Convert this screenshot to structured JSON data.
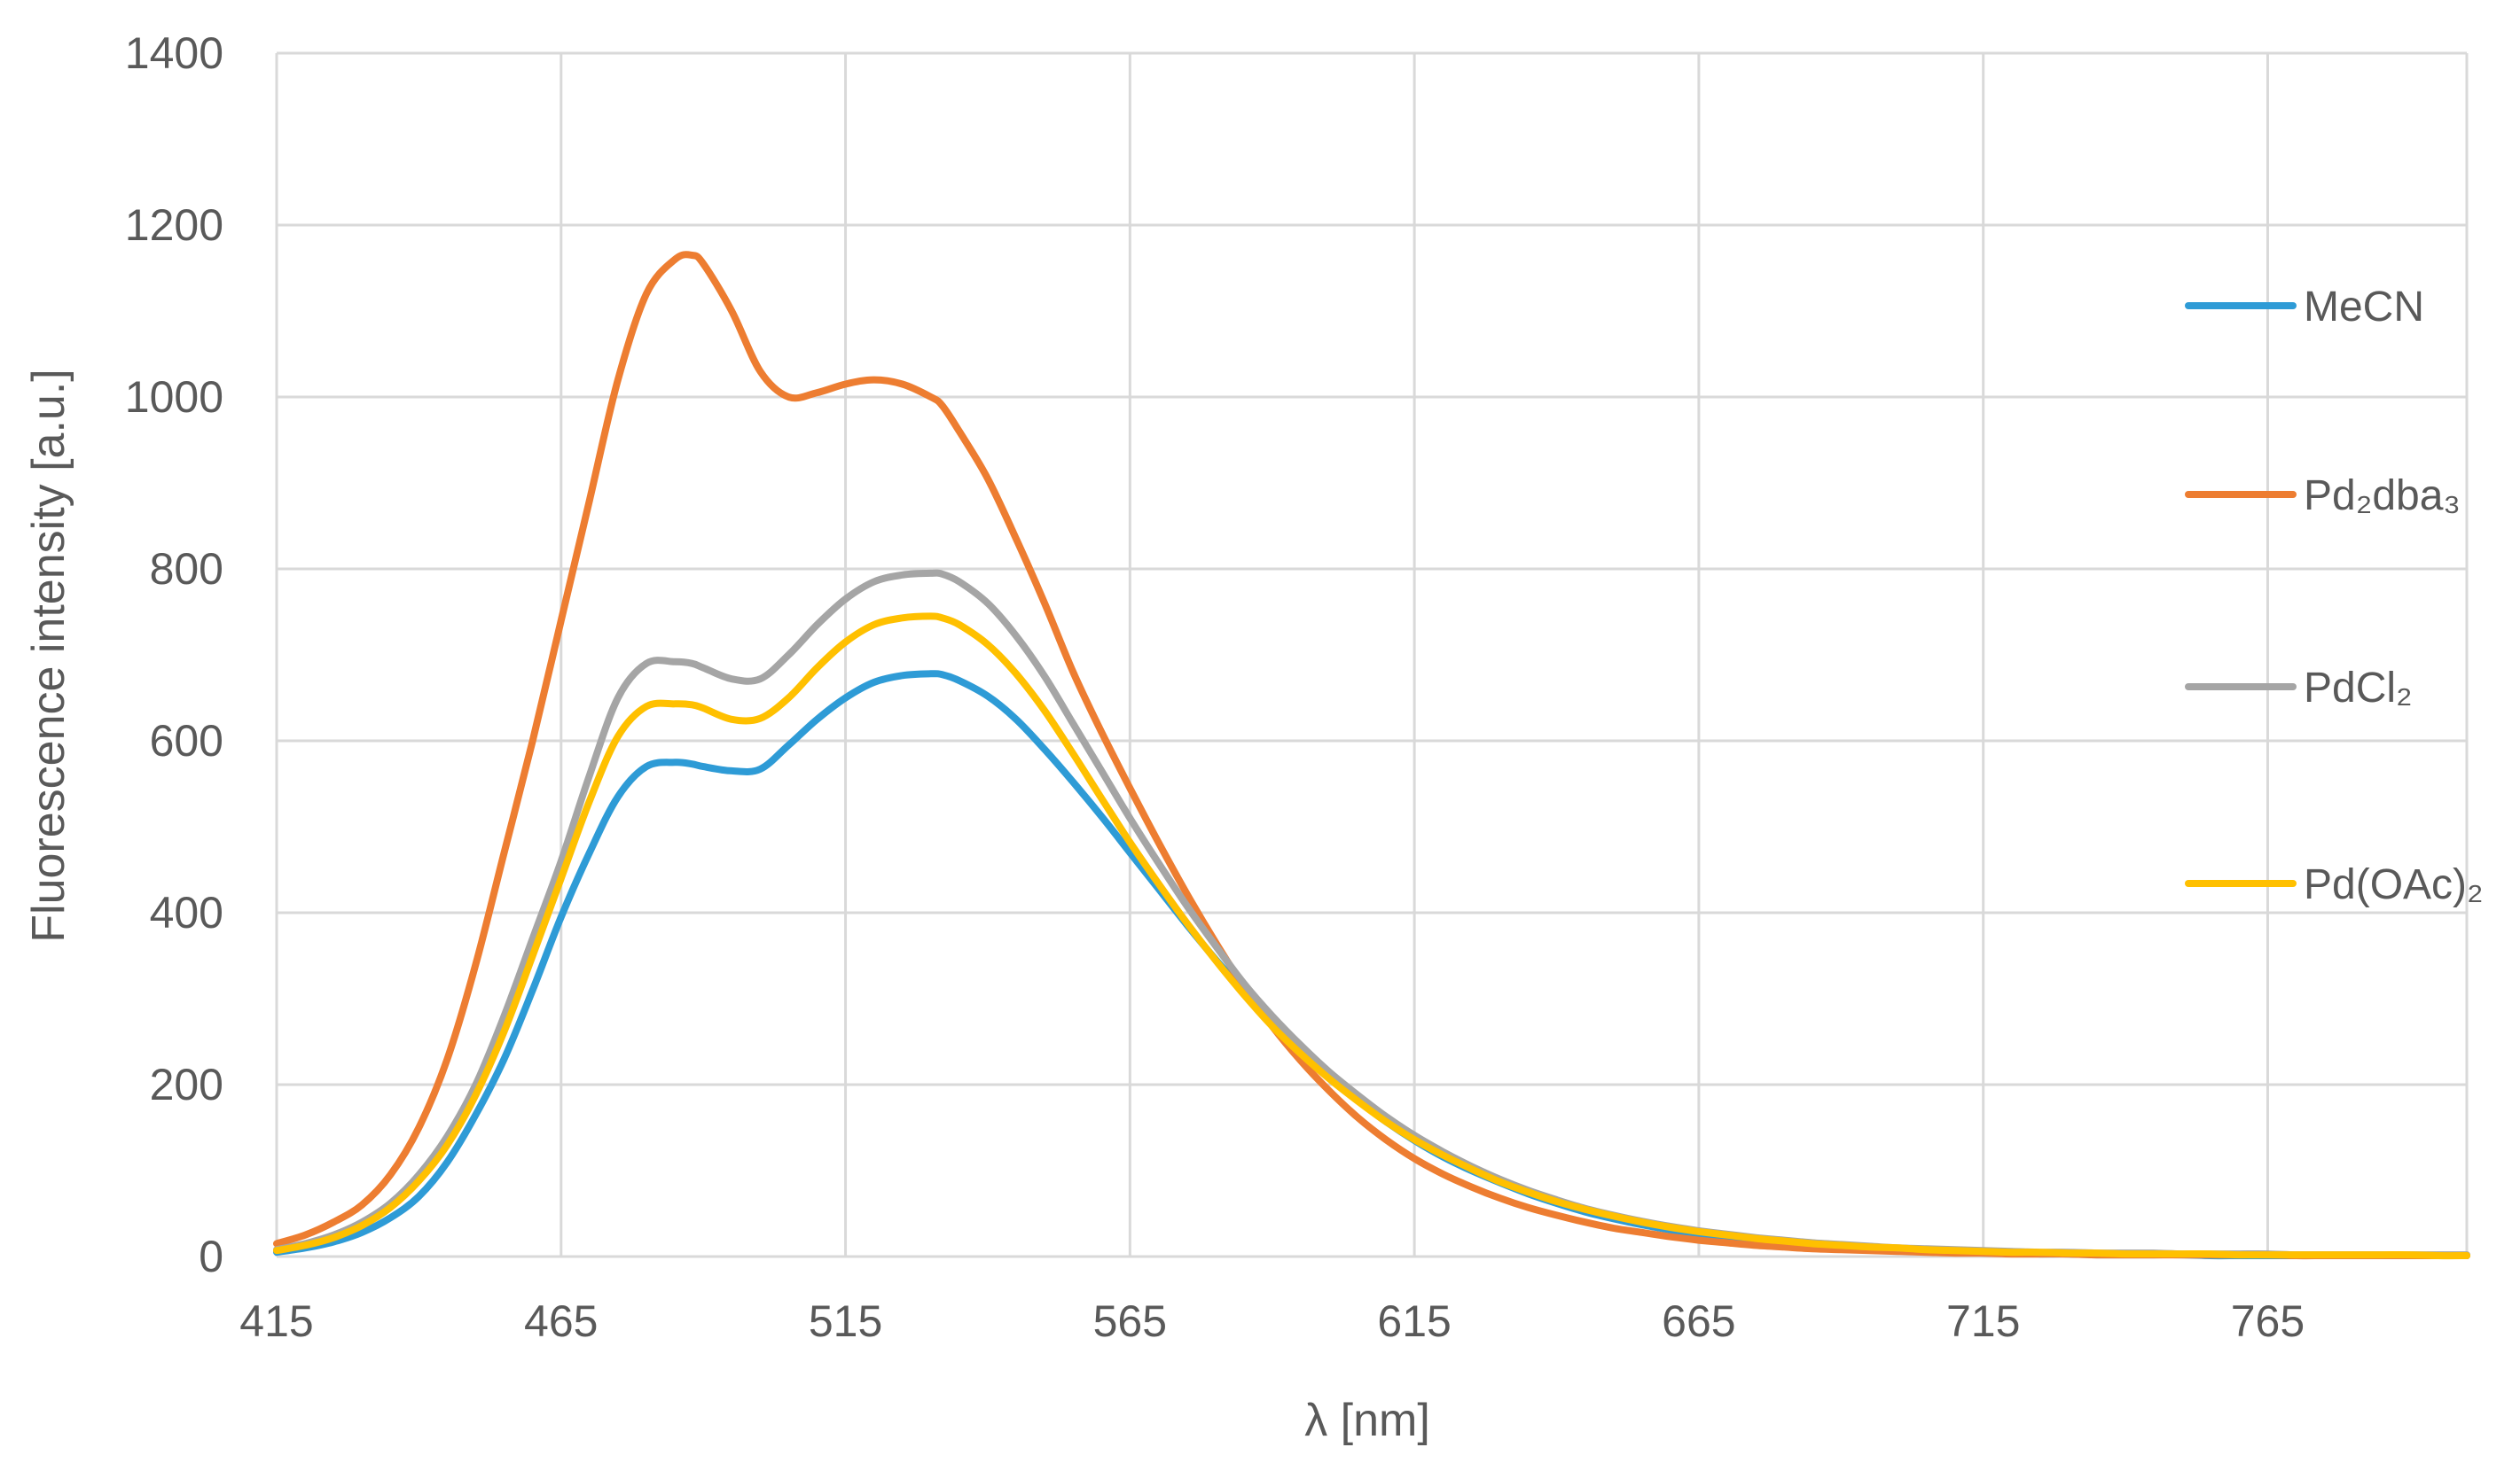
{
  "chart_data": {
    "type": "line",
    "xlabel": "λ [nm]",
    "ylabel": "Fluorescence intensity [a.u.]",
    "xlim": [
      415,
      800
    ],
    "ylim": [
      0,
      1400
    ],
    "xticks": [
      415,
      465,
      515,
      565,
      615,
      665,
      715,
      765
    ],
    "yticks": [
      0,
      200,
      400,
      600,
      800,
      1000,
      1200,
      1400
    ],
    "grid": true,
    "legend_position": "right",
    "x": [
      415,
      420,
      425,
      430,
      435,
      440,
      445,
      450,
      455,
      460,
      465,
      470,
      475,
      480,
      485,
      488,
      490,
      495,
      500,
      505,
      510,
      515,
      520,
      525,
      530,
      532,
      535,
      540,
      545,
      550,
      555,
      560,
      565,
      570,
      575,
      580,
      585,
      590,
      595,
      600,
      605,
      610,
      615,
      620,
      625,
      630,
      635,
      640,
      645,
      650,
      655,
      660,
      665,
      670,
      675,
      680,
      685,
      690,
      695,
      700,
      705,
      710,
      715,
      720,
      725,
      730,
      735,
      740,
      745,
      750,
      755,
      760,
      765,
      770,
      775,
      780,
      785,
      790,
      795,
      800
    ],
    "series": [
      {
        "name": "MeCN",
        "color": "#2E9BD6",
        "values": [
          5,
          10,
          17,
          28,
          45,
          70,
          110,
          165,
          230,
          310,
          395,
          470,
          535,
          570,
          575,
          573,
          570,
          565,
          567,
          595,
          625,
          650,
          668,
          676,
          678,
          677,
          670,
          652,
          625,
          590,
          552,
          512,
          470,
          428,
          386,
          346,
          308,
          272,
          240,
          210,
          182,
          157,
          135,
          116,
          100,
          86,
          73,
          62,
          52,
          44,
          37,
          31,
          26,
          22,
          18,
          15,
          12,
          10,
          9,
          7,
          6,
          5,
          4,
          4,
          3,
          3,
          2,
          2,
          2,
          2,
          1,
          1,
          1,
          1,
          1,
          1,
          1,
          1,
          1,
          1
        ]
      },
      {
        "name": "Pd₂dba₃",
        "sub": "2",
        "color": "#ED7D31",
        "values": [
          15,
          25,
          40,
          60,
          95,
          150,
          230,
          340,
          470,
          600,
          740,
          880,
          1020,
          1120,
          1160,
          1165,
          1155,
          1100,
          1030,
          1000,
          1005,
          1015,
          1020,
          1015,
          1000,
          990,
          960,
          905,
          835,
          760,
          680,
          610,
          545,
          482,
          422,
          366,
          314,
          268,
          228,
          193,
          162,
          136,
          114,
          96,
          81,
          68,
          57,
          48,
          40,
          33,
          28,
          23,
          19,
          16,
          13,
          11,
          9,
          8,
          7,
          6,
          5,
          4,
          4,
          3,
          3,
          3,
          2,
          2,
          2,
          2,
          2,
          2,
          2,
          1,
          1,
          1,
          1,
          1,
          1,
          1
        ]
      },
      {
        "name": "PdCl₂",
        "sub": "2",
        "color": "#A5A5A5",
        "values": [
          8,
          15,
          25,
          40,
          62,
          95,
          140,
          200,
          280,
          370,
          460,
          560,
          650,
          690,
          692,
          690,
          685,
          672,
          672,
          700,
          735,
          765,
          785,
          793,
          795,
          794,
          785,
          760,
          722,
          675,
          620,
          565,
          510,
          458,
          408,
          362,
          318,
          280,
          246,
          215,
          188,
          163,
          141,
          122,
          105,
          90,
          77,
          66,
          56,
          48,
          41,
          35,
          30,
          26,
          22,
          19,
          16,
          14,
          12,
          10,
          9,
          8,
          7,
          6,
          5,
          5,
          4,
          4,
          4,
          3,
          3,
          3,
          3,
          2,
          2,
          2,
          2,
          2,
          2,
          2
        ]
      },
      {
        "name": "Pd(OAc)₂",
        "sub": "2",
        "color": "#FFC000",
        "values": [
          7,
          13,
          22,
          36,
          57,
          88,
          130,
          188,
          262,
          350,
          440,
          530,
          605,
          640,
          643,
          642,
          638,
          625,
          626,
          650,
          685,
          715,
          735,
          743,
          745,
          743,
          735,
          712,
          678,
          635,
          585,
          533,
          482,
          434,
          388,
          345,
          305,
          268,
          236,
          207,
          181,
          157,
          136,
          118,
          102,
          87,
          75,
          64,
          55,
          47,
          40,
          34,
          29,
          25,
          21,
          18,
          15,
          13,
          11,
          10,
          8,
          7,
          6,
          5,
          5,
          4,
          4,
          3,
          3,
          3,
          3,
          2,
          2,
          2,
          2,
          2,
          2,
          2,
          1,
          1
        ]
      }
    ]
  }
}
